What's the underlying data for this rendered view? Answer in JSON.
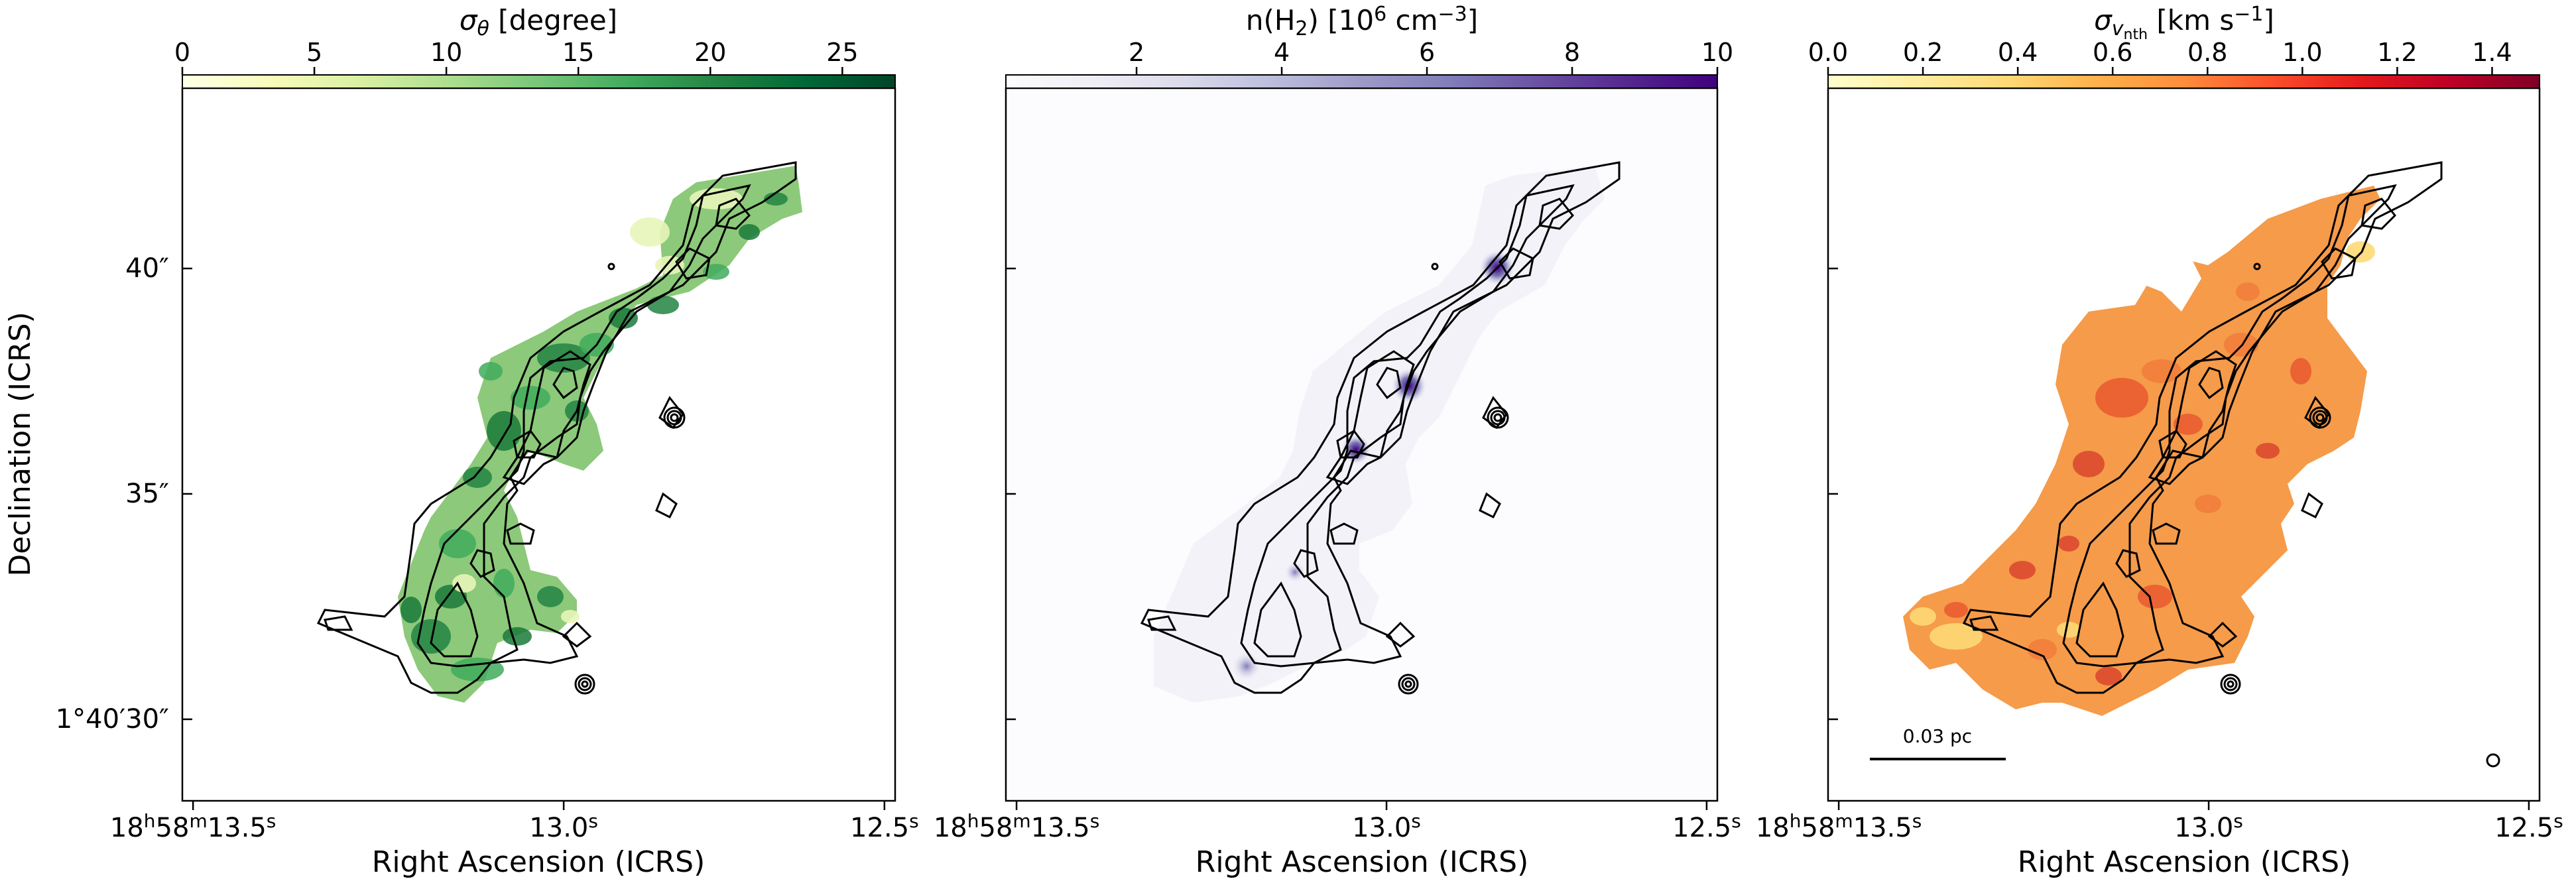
{
  "chart_data": [
    {
      "type": "heatmap",
      "panel": "left",
      "colorbar": {
        "label_main": "σ",
        "label_sub": "θ",
        "label_rest": " [degree]",
        "ticks": [
          "0",
          "5",
          "10",
          "15",
          "20",
          "25"
        ],
        "tick_values": [
          0,
          5,
          10,
          15,
          20,
          25
        ],
        "range": [
          0,
          27
        ],
        "colors": [
          "#ffffe5",
          "#f7fcb9",
          "#d9f0a3",
          "#addd8e",
          "#78c679",
          "#41ab5d",
          "#238443",
          "#006837",
          "#004529"
        ]
      },
      "xlabel": "Right Ascension (ICRS)",
      "ylabel": "Declination (ICRS)",
      "x_ticks": [
        {
          "main": "18",
          "sup1": "h",
          "mid": "58",
          "sup2": "m",
          "end": "13.5",
          "sup3": "s"
        },
        {
          "main": "13.0",
          "sup1": "s"
        },
        {
          "main": "12.5",
          "sup1": "s"
        }
      ],
      "y_ticks": [
        "40″",
        "35″",
        "1°40′30″"
      ],
      "region_color": "#8cc97a",
      "dark_patches": [
        "#238443",
        "#41ab5d",
        "#1a7a3a"
      ]
    },
    {
      "type": "heatmap",
      "panel": "middle",
      "colorbar": {
        "label_text": "n(H",
        "label_sub": "2",
        "label_mid": ") [10",
        "label_sup1": "6",
        "label_mid2": " cm",
        "label_sup2": "−3",
        "label_end": "]",
        "ticks": [
          "2",
          "4",
          "6",
          "8",
          "10"
        ],
        "tick_values": [
          2,
          4,
          6,
          8,
          10
        ],
        "range": [
          0.2,
          10
        ],
        "colors": [
          "#fcfbfd",
          "#efedf5",
          "#dadaeb",
          "#bcbddc",
          "#9e9ac8",
          "#807dba",
          "#6a51a3",
          "#54278f",
          "#3f007d"
        ]
      },
      "xlabel": "Right Ascension (ICRS)",
      "x_ticks": [
        {
          "main": "18",
          "sup1": "h",
          "mid": "58",
          "sup2": "m",
          "end": "13.5",
          "sup3": "s"
        },
        {
          "main": "13.0",
          "sup1": "s"
        },
        {
          "main": "12.5",
          "sup1": "s"
        }
      ],
      "region_color": "#f3f2f8"
    },
    {
      "type": "heatmap",
      "panel": "right",
      "colorbar": {
        "label_main": "σ",
        "label_sub": "v",
        "label_subsub": "nth",
        "label_rest": " [km s",
        "label_sup": "−1",
        "label_end": "]",
        "ticks": [
          "0.0",
          "0.2",
          "0.4",
          "0.6",
          "0.8",
          "1.0",
          "1.2",
          "1.4"
        ],
        "tick_values": [
          0.0,
          0.2,
          0.4,
          0.6,
          0.8,
          1.0,
          1.2,
          1.4
        ],
        "range": [
          0.0,
          1.5
        ],
        "colors": [
          "#ffffcc",
          "#ffeda0",
          "#fed976",
          "#feb24c",
          "#fd8d3c",
          "#fc4e2a",
          "#e31a1c",
          "#bd0026",
          "#800026"
        ]
      },
      "xlabel": "Right Ascension (ICRS)",
      "x_ticks": [
        {
          "main": "18",
          "sup1": "h",
          "mid": "58",
          "sup2": "m",
          "end": "13.5",
          "sup3": "s"
        },
        {
          "main": "13.0",
          "sup1": "s"
        },
        {
          "main": "12.5",
          "sup1": "s"
        }
      ],
      "scalebar_label": "0.03 pc",
      "region_color": "#f59b4a",
      "dark_patches": [
        "#e8552c",
        "#f07b3a",
        "#d9402a"
      ]
    }
  ]
}
